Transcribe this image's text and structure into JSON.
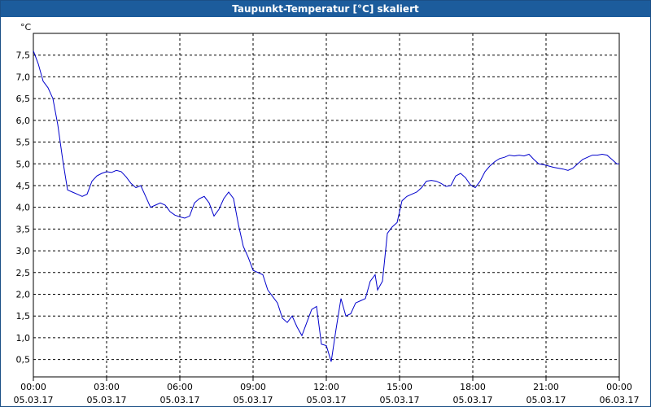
{
  "window": {
    "title": "Taupunkt-Temperatur [°C] skaliert"
  },
  "chart_data": {
    "type": "line",
    "title": "Taupunkt-Temperatur [°C] skaliert",
    "ylabel": "°C",
    "xlabel": "",
    "xlim": [
      0,
      24
    ],
    "ylim": [
      0,
      8
    ],
    "grid": true,
    "y_ticks": [
      "0,5",
      "1,0",
      "1,5",
      "2,0",
      "2,5",
      "3,0",
      "3,5",
      "4,0",
      "4,5",
      "5,0",
      "5,5",
      "6,0",
      "6,5",
      "7,0",
      "7,5"
    ],
    "x_ticks": [
      {
        "time": "00:00",
        "date": "05.03.17"
      },
      {
        "time": "03:00",
        "date": "05.03.17"
      },
      {
        "time": "06:00",
        "date": "05.03.17"
      },
      {
        "time": "09:00",
        "date": "05.03.17"
      },
      {
        "time": "12:00",
        "date": "05.03.17"
      },
      {
        "time": "15:00",
        "date": "05.03.17"
      },
      {
        "time": "18:00",
        "date": "05.03.17"
      },
      {
        "time": "21:00",
        "date": "05.03.17"
      },
      {
        "time": "00:00",
        "date": "06.03.17"
      }
    ],
    "series": [
      {
        "color": "#0000cc",
        "x": [
          0,
          0.2,
          0.4,
          0.6,
          0.8,
          1.0,
          1.2,
          1.4,
          1.6,
          1.8,
          2.0,
          2.2,
          2.4,
          2.6,
          2.8,
          3.0,
          3.2,
          3.4,
          3.6,
          3.8,
          4.0,
          4.2,
          4.4,
          4.6,
          4.8,
          5.0,
          5.2,
          5.4,
          5.6,
          5.8,
          6.0,
          6.2,
          6.4,
          6.6,
          6.8,
          7.0,
          7.2,
          7.4,
          7.6,
          7.8,
          8.0,
          8.2,
          8.4,
          8.6,
          8.8,
          9.0,
          9.2,
          9.4,
          9.6,
          9.8,
          10.0,
          10.2,
          10.4,
          10.6,
          10.8,
          11.0,
          11.2,
          11.4,
          11.6,
          11.8,
          12.0,
          12.2,
          12.4,
          12.6,
          12.8,
          13.0,
          13.2,
          13.4,
          13.6,
          13.8,
          14.0,
          14.1,
          14.3,
          14.5,
          14.7,
          14.9,
          15.1,
          15.3,
          15.5,
          15.7,
          15.9,
          16.1,
          16.3,
          16.5,
          16.7,
          16.9,
          17.1,
          17.3,
          17.5,
          17.7,
          17.9,
          18.1,
          18.3,
          18.5,
          18.7,
          18.9,
          19.1,
          19.3,
          19.5,
          19.7,
          19.9,
          20.1,
          20.3,
          20.5,
          20.7,
          20.9,
          21.1,
          21.3,
          21.5,
          21.7,
          21.9,
          22.1,
          22.3,
          22.5,
          22.7,
          22.9,
          23.1,
          23.3,
          23.5,
          23.7,
          23.9,
          24.0
        ],
        "y": [
          7.6,
          7.3,
          6.9,
          6.75,
          6.5,
          5.9,
          5.1,
          4.4,
          4.35,
          4.3,
          4.25,
          4.3,
          4.6,
          4.72,
          4.78,
          4.82,
          4.8,
          4.85,
          4.82,
          4.7,
          4.55,
          4.45,
          4.5,
          4.25,
          4.0,
          4.05,
          4.1,
          4.05,
          3.9,
          3.82,
          3.78,
          3.75,
          3.8,
          4.1,
          4.2,
          4.25,
          4.1,
          3.8,
          3.95,
          4.2,
          4.35,
          4.2,
          3.6,
          3.1,
          2.85,
          2.55,
          2.5,
          2.45,
          2.1,
          1.95,
          1.8,
          1.45,
          1.35,
          1.5,
          1.25,
          1.05,
          1.35,
          1.65,
          1.72,
          0.85,
          0.82,
          0.45,
          1.2,
          1.9,
          1.5,
          1.55,
          1.8,
          1.85,
          1.9,
          2.3,
          2.45,
          2.1,
          2.3,
          3.4,
          3.55,
          3.65,
          4.15,
          4.25,
          4.3,
          4.35,
          4.45,
          4.6,
          4.62,
          4.6,
          4.55,
          4.48,
          4.5,
          4.72,
          4.78,
          4.68,
          4.52,
          4.45,
          4.6,
          4.82,
          4.95,
          5.05,
          5.12,
          5.15,
          5.2,
          5.18,
          5.2,
          5.18,
          5.22,
          5.1,
          5.0,
          4.98,
          4.95,
          4.92,
          4.9,
          4.88,
          4.85,
          4.9,
          5.0,
          5.1,
          5.15,
          5.2,
          5.2,
          5.22,
          5.2,
          5.1,
          5.0,
          5.0
        ]
      }
    ]
  }
}
